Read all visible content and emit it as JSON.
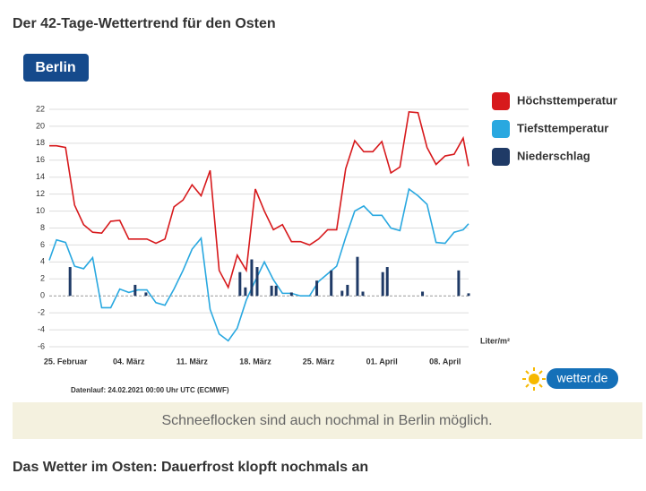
{
  "header": {
    "title": "Der 42-Tage-Wettertrend für den Osten",
    "badge": "Berlin"
  },
  "chart_data": {
    "type": "line",
    "y_unit_label": "Liter/m²",
    "source_note": "Datenlauf: 24.02.2021 00:00 Uhr UTC (ECMWF)",
    "xlim": [
      -1.8,
      44.6
    ],
    "xticks": [
      {
        "value": 0,
        "label": "25. Februar"
      },
      {
        "value": 7,
        "label": "04. März"
      },
      {
        "value": 14,
        "label": "11. März"
      },
      {
        "value": 21,
        "label": "18. März"
      },
      {
        "value": 28,
        "label": "25. März"
      },
      {
        "value": 35,
        "label": "01. April"
      },
      {
        "value": 42,
        "label": "08. April"
      }
    ],
    "ylim": [
      -6,
      22
    ],
    "yticks": [
      -6,
      -4,
      -2,
      0,
      2,
      4,
      6,
      8,
      10,
      12,
      14,
      16,
      18,
      20,
      22
    ],
    "grid": true,
    "legend": "right",
    "series": [
      {
        "name": "Höchsttemperatur",
        "color": "#d7191c",
        "type": "line",
        "x": [
          -1.8,
          -1,
          0,
          1,
          2,
          3,
          4,
          5,
          6,
          7,
          8,
          9,
          10,
          11,
          12,
          13,
          14,
          15,
          16,
          17,
          18,
          19,
          20,
          21,
          22,
          23,
          24,
          25,
          26,
          27,
          28,
          29,
          30,
          31,
          32,
          33,
          34,
          35,
          36,
          37,
          38,
          39,
          40,
          41,
          42,
          43,
          44,
          44.6
        ],
        "values": [
          17.7,
          17.7,
          17.5,
          10.7,
          8.4,
          7.5,
          7.4,
          8.8,
          8.9,
          6.7,
          6.7,
          6.7,
          6.2,
          6.7,
          10.5,
          11.3,
          13.1,
          11.8,
          14.8,
          3,
          1,
          4.8,
          3,
          12.6,
          10,
          7.8,
          8.4,
          6.4,
          6.4,
          6,
          6.7,
          7.8,
          7.8,
          15,
          18.3,
          17,
          17,
          18.2,
          14.5,
          15.2,
          21.7,
          21.6,
          17.5,
          15.5,
          16.5,
          16.7,
          18.6,
          15.3
        ]
      },
      {
        "name": "Tiefsttemperatur",
        "color": "#29a8e0",
        "type": "line",
        "x": [
          -1.8,
          -1,
          0,
          1,
          2,
          3,
          4,
          5,
          6,
          7,
          8,
          9,
          10,
          11,
          12,
          13,
          14,
          15,
          16,
          17,
          18,
          19,
          20,
          21,
          22,
          23,
          24,
          25,
          26,
          27,
          28,
          29,
          30,
          31,
          32,
          33,
          34,
          35,
          36,
          37,
          38,
          39,
          40,
          41,
          42,
          43,
          44,
          44.6
        ],
        "values": [
          4.2,
          6.6,
          6.3,
          3.5,
          3.2,
          4.5,
          -1.4,
          -1.4,
          0.8,
          0.4,
          0.7,
          0.7,
          -0.8,
          -1.1,
          0.8,
          3,
          5.5,
          6.8,
          -1.6,
          -4.5,
          -5.3,
          -3.8,
          -0.5,
          1.8,
          4,
          1.9,
          0.3,
          0.3,
          0,
          0,
          1.7,
          2.6,
          3.5,
          6.9,
          10,
          10.6,
          9.5,
          9.5,
          8,
          7.7,
          12.6,
          11.8,
          10.8,
          6.3,
          6.2,
          7.5,
          7.8,
          8.5
        ]
      },
      {
        "name": "Niederschlag",
        "color": "#1f3a66",
        "type": "bar",
        "x": [
          0.5,
          7.7,
          8.9,
          19.3,
          19.9,
          20.6,
          21.2,
          22.8,
          23.3,
          25,
          27.8,
          29.4,
          30.6,
          31.2,
          32.3,
          32.9,
          35.1,
          35.6,
          39.5,
          43.5,
          44.6
        ],
        "values": [
          3.4,
          1.3,
          0.4,
          2.8,
          1,
          4.3,
          3.4,
          1.2,
          1.2,
          0.4,
          1.8,
          3,
          0.6,
          1.3,
          4.6,
          0.5,
          2.8,
          3.4,
          0.5,
          3,
          0.3
        ]
      }
    ]
  },
  "logo": "wetter.de",
  "caption": "Schneeflocken sind auch nochmal in Berlin möglich.",
  "next_heading": "Das Wetter im Osten: Dauerfrost klopft nochmals an"
}
